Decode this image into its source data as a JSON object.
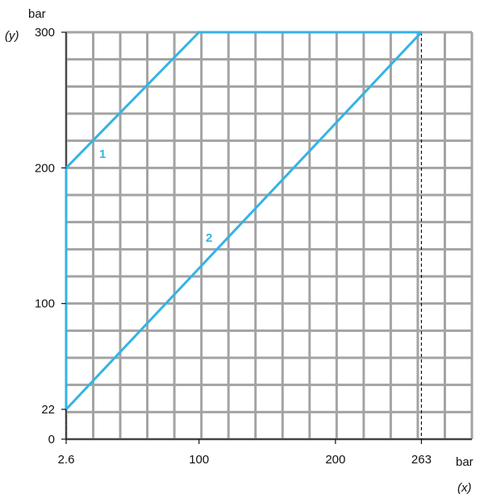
{
  "chart_data": {
    "type": "line",
    "xlabel": "bar",
    "xsymbol": "(x)",
    "ylabel": "bar",
    "ysymbol": "(y)",
    "xlim": [
      2.6,
      300
    ],
    "ylim": [
      0,
      300
    ],
    "x_ticks": [
      {
        "value": 2.6,
        "label": "2.6"
      },
      {
        "value": 100,
        "label": "100"
      },
      {
        "value": 200,
        "label": "200"
      },
      {
        "value": 263,
        "label": "263"
      }
    ],
    "y_ticks": [
      {
        "value": 0,
        "label": "0"
      },
      {
        "value": 22,
        "label": "22"
      },
      {
        "value": 100,
        "label": "100"
      },
      {
        "value": 200,
        "label": "200"
      },
      {
        "value": 300,
        "label": "300"
      }
    ],
    "grid": true,
    "series": [
      {
        "name": "1",
        "color": "#33b3e6",
        "points": [
          [
            2.6,
            22
          ],
          [
            2.6,
            200
          ],
          [
            100,
            300
          ],
          [
            263,
            300
          ]
        ]
      },
      {
        "name": "2",
        "color": "#33b3e6",
        "points": [
          [
            2.6,
            22
          ],
          [
            263,
            300
          ]
        ]
      }
    ],
    "guides": [
      {
        "x": 263,
        "y": 300
      },
      {
        "x": 2.6,
        "y": 22
      }
    ]
  }
}
